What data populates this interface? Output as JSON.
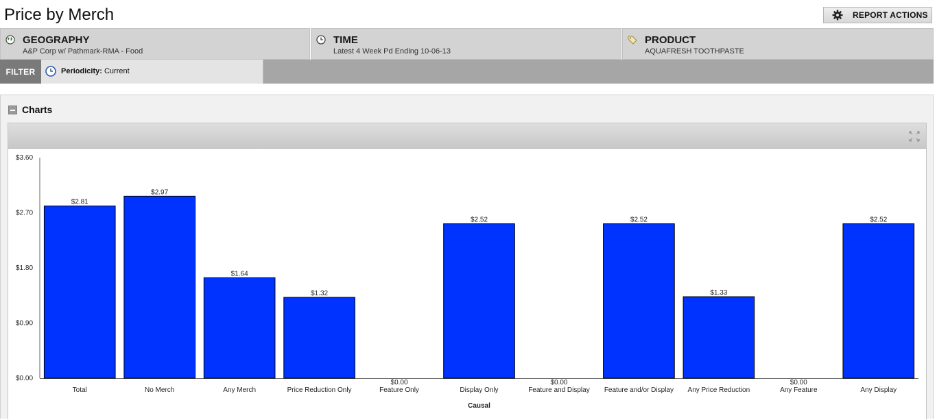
{
  "page": {
    "title": "Price by Merch"
  },
  "header": {
    "report_actions_label": "REPORT ACTIONS"
  },
  "context": {
    "geography": {
      "title": "GEOGRAPHY",
      "value": "A&P Corp w/ Pathmark-RMA - Food"
    },
    "time": {
      "title": "TIME",
      "value": "Latest 4 Week Pd Ending 10-06-13"
    },
    "product": {
      "title": "PRODUCT",
      "value": "AQUAFRESH TOOTHPASTE"
    }
  },
  "filter": {
    "label": "FILTER",
    "periodicity_label": "Periodicity:",
    "periodicity_value": "Current"
  },
  "charts_panel": {
    "title": "Charts"
  },
  "colors": {
    "bar": "#0033ff",
    "bar_border": "#000000"
  },
  "chart_data": {
    "type": "bar",
    "xlabel": "Causal",
    "ylabel": "",
    "ylim": [
      0,
      3.6
    ],
    "yticks": [
      "$0.00",
      "$0.90",
      "$1.80",
      "$2.70",
      "$3.60"
    ],
    "ytick_values": [
      0,
      0.9,
      1.8,
      2.7,
      3.6
    ],
    "categories": [
      "Total",
      "No Merch",
      "Any Merch",
      "Price Reduction Only",
      "Feature Only",
      "Display Only",
      "Feature and Display",
      "Feature and/or Display",
      "Any Price Reduction",
      "Any Feature",
      "Any Display"
    ],
    "values": [
      2.81,
      2.97,
      1.64,
      1.32,
      0.0,
      2.52,
      0.0,
      2.52,
      1.33,
      0.0,
      2.52
    ],
    "value_labels": [
      "$2.81",
      "$2.97",
      "$1.64",
      "$1.32",
      "$0.00",
      "$2.52",
      "$0.00",
      "$2.52",
      "$1.33",
      "$0.00",
      "$2.52"
    ],
    "grid": false,
    "legend": "none"
  }
}
